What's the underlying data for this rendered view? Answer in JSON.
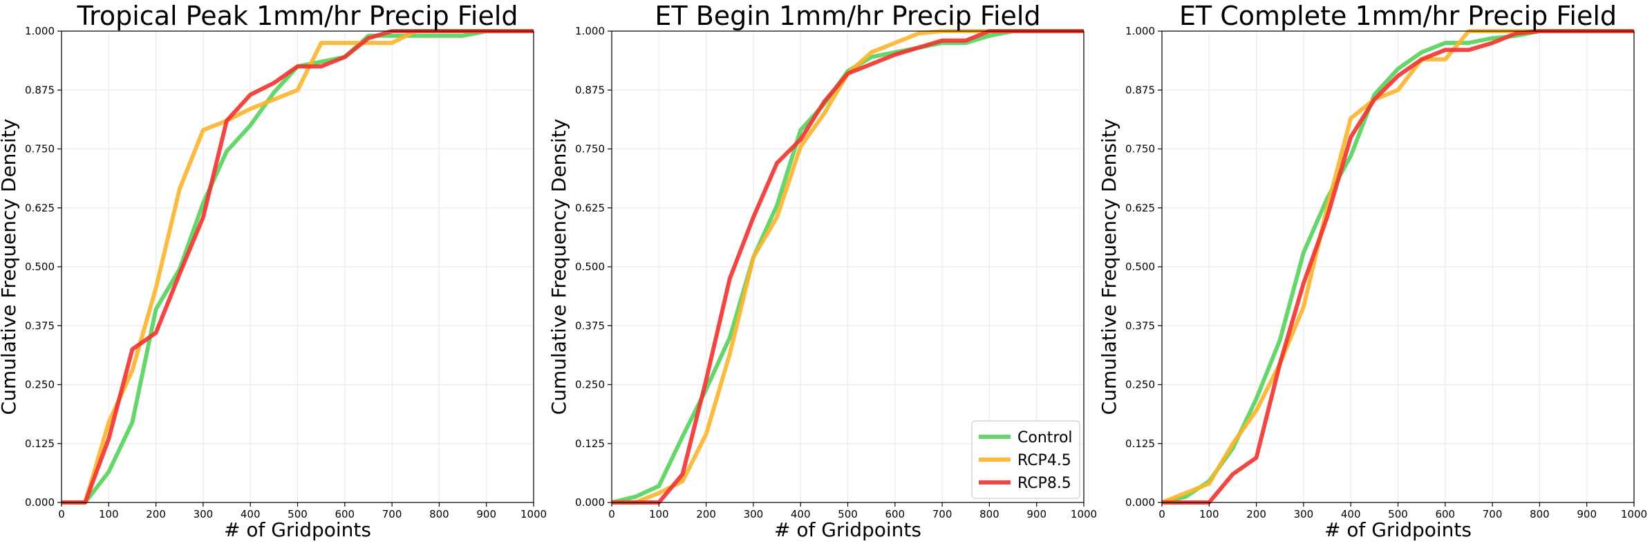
{
  "colors": {
    "Control": "#57d15a",
    "RCP4.5": "#fbb42b",
    "RCP8.5": "#f2322f"
  },
  "chart_data": [
    {
      "type": "line",
      "title": "Tropical Peak 1mm/hr Precip Field",
      "xlabel": "# of Gridpoints",
      "ylabel": "Cumulative Frequency Density",
      "xlim": [
        0,
        1000
      ],
      "ylim": [
        0,
        1
      ],
      "xticks": [
        "0",
        "100",
        "200",
        "300",
        "400",
        "500",
        "600",
        "700",
        "800",
        "900",
        "1000"
      ],
      "yticks": [
        "0.000",
        "0.125",
        "0.250",
        "0.375",
        "0.500",
        "0.625",
        "0.750",
        "0.875",
        "1.000"
      ],
      "grid": true,
      "legend": false,
      "series": [
        {
          "name": "Control",
          "x": [
            0,
            50,
            100,
            150,
            200,
            250,
            300,
            350,
            400,
            450,
            500,
            550,
            600,
            650,
            700,
            750,
            800,
            850,
            900,
            950,
            1000
          ],
          "y": [
            0,
            0,
            0.065,
            0.17,
            0.41,
            0.495,
            0.635,
            0.745,
            0.8,
            0.87,
            0.925,
            0.935,
            0.945,
            0.99,
            0.99,
            0.99,
            0.99,
            0.99,
            1.0,
            1.0,
            1.0
          ]
        },
        {
          "name": "RCP4.5",
          "x": [
            0,
            50,
            100,
            150,
            200,
            250,
            300,
            350,
            400,
            450,
            500,
            550,
            600,
            650,
            700,
            750,
            800,
            850,
            900,
            950,
            1000
          ],
          "y": [
            0,
            0,
            0.17,
            0.28,
            0.455,
            0.665,
            0.79,
            0.81,
            0.835,
            0.855,
            0.875,
            0.975,
            0.975,
            0.975,
            0.975,
            1.0,
            1.0,
            1.0,
            1.0,
            1.0,
            1.0
          ]
        },
        {
          "name": "RCP8.5",
          "x": [
            0,
            50,
            100,
            150,
            200,
            250,
            300,
            350,
            400,
            450,
            500,
            550,
            600,
            650,
            700,
            750,
            800,
            850,
            900,
            950,
            1000
          ],
          "y": [
            0,
            0,
            0.135,
            0.325,
            0.36,
            0.485,
            0.605,
            0.81,
            0.865,
            0.89,
            0.925,
            0.925,
            0.945,
            0.985,
            1.0,
            1.0,
            1.0,
            1.0,
            1.0,
            1.0,
            1.0
          ]
        }
      ]
    },
    {
      "type": "line",
      "title": "ET Begin 1mm/hr Precip Field",
      "xlabel": "# of Gridpoints",
      "ylabel": "Cumulative Frequency Density",
      "xlim": [
        0,
        1000
      ],
      "ylim": [
        0,
        1
      ],
      "xticks": [
        "0",
        "100",
        "200",
        "300",
        "400",
        "500",
        "600",
        "700",
        "800",
        "900",
        "1000"
      ],
      "yticks": [
        "0.000",
        "0.125",
        "0.250",
        "0.375",
        "0.500",
        "0.625",
        "0.750",
        "0.875",
        "1.000"
      ],
      "grid": true,
      "legend": true,
      "legend_position": "lower-right",
      "series": [
        {
          "name": "Control",
          "x": [
            0,
            50,
            100,
            150,
            200,
            250,
            300,
            350,
            400,
            450,
            500,
            550,
            600,
            650,
            700,
            750,
            800,
            850,
            900,
            950,
            1000
          ],
          "y": [
            0,
            0.012,
            0.035,
            0.14,
            0.24,
            0.35,
            0.52,
            0.63,
            0.79,
            0.845,
            0.915,
            0.945,
            0.955,
            0.965,
            0.975,
            0.975,
            0.99,
            1.0,
            1.0,
            1.0,
            1.0
          ]
        },
        {
          "name": "RCP4.5",
          "x": [
            0,
            50,
            100,
            150,
            200,
            250,
            300,
            350,
            400,
            450,
            500,
            550,
            600,
            650,
            700,
            750,
            800,
            850,
            900,
            950,
            1000
          ],
          "y": [
            0,
            0,
            0.02,
            0.045,
            0.145,
            0.315,
            0.52,
            0.605,
            0.755,
            0.825,
            0.91,
            0.955,
            0.975,
            0.995,
            1.0,
            1.0,
            1.0,
            1.0,
            1.0,
            1.0,
            1.0
          ]
        },
        {
          "name": "RCP8.5",
          "x": [
            0,
            50,
            100,
            150,
            200,
            250,
            300,
            350,
            400,
            450,
            500,
            550,
            600,
            650,
            700,
            750,
            800,
            850,
            900,
            950,
            1000
          ],
          "y": [
            0,
            0,
            0,
            0.06,
            0.26,
            0.475,
            0.605,
            0.72,
            0.77,
            0.85,
            0.91,
            0.93,
            0.95,
            0.965,
            0.98,
            0.98,
            1.0,
            1.0,
            1.0,
            1.0,
            1.0
          ]
        }
      ]
    },
    {
      "type": "line",
      "title": "ET Complete 1mm/hr Precip Field",
      "xlabel": "# of Gridpoints",
      "ylabel": "Cumulative Frequency Density",
      "xlim": [
        0,
        1000
      ],
      "ylim": [
        0,
        1
      ],
      "xticks": [
        "0",
        "100",
        "200",
        "300",
        "400",
        "500",
        "600",
        "700",
        "800",
        "900",
        "1000"
      ],
      "yticks": [
        "0.000",
        "0.125",
        "0.250",
        "0.375",
        "0.500",
        "0.625",
        "0.750",
        "0.875",
        "1.000"
      ],
      "grid": true,
      "legend": false,
      "series": [
        {
          "name": "Control",
          "x": [
            0,
            50,
            100,
            150,
            200,
            250,
            300,
            350,
            400,
            450,
            500,
            550,
            600,
            650,
            700,
            750,
            800,
            850,
            900,
            950,
            1000
          ],
          "y": [
            0,
            0.012,
            0.045,
            0.115,
            0.22,
            0.345,
            0.53,
            0.645,
            0.735,
            0.865,
            0.92,
            0.955,
            0.975,
            0.975,
            0.985,
            0.99,
            1.0,
            1.0,
            1.0,
            1.0,
            1.0
          ]
        },
        {
          "name": "RCP4.5",
          "x": [
            0,
            50,
            100,
            150,
            200,
            250,
            300,
            350,
            400,
            450,
            500,
            550,
            600,
            650,
            700,
            750,
            800,
            850,
            900,
            950,
            1000
          ],
          "y": [
            0,
            0.02,
            0.04,
            0.125,
            0.195,
            0.295,
            0.415,
            0.625,
            0.815,
            0.855,
            0.875,
            0.94,
            0.94,
            1.0,
            1.0,
            1.0,
            1.0,
            1.0,
            1.0,
            1.0,
            1.0
          ]
        },
        {
          "name": "RCP8.5",
          "x": [
            0,
            50,
            100,
            150,
            200,
            250,
            300,
            350,
            400,
            450,
            500,
            550,
            600,
            650,
            700,
            750,
            800,
            850,
            900,
            950,
            1000
          ],
          "y": [
            0,
            0,
            0,
            0.06,
            0.095,
            0.295,
            0.465,
            0.605,
            0.775,
            0.855,
            0.905,
            0.94,
            0.96,
            0.96,
            0.975,
            0.995,
            1.0,
            1.0,
            1.0,
            1.0,
            1.0
          ]
        }
      ]
    }
  ]
}
